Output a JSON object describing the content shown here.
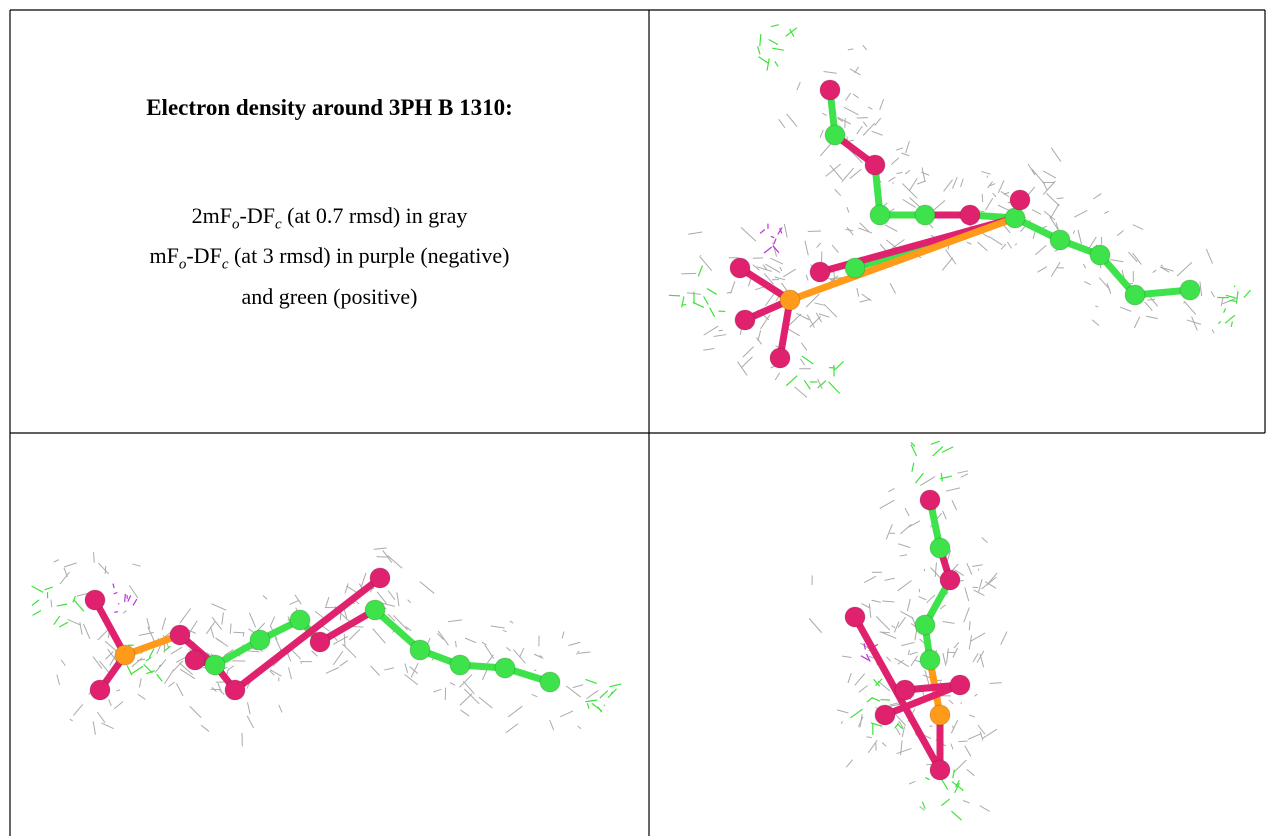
{
  "title": "Electron density around 3PH B 1310:",
  "legend": [
    {
      "parts": [
        "2mF",
        "o",
        "-DF",
        "c",
        " (at 0.7 rmsd) in gray"
      ]
    },
    {
      "parts": [
        "mF",
        "o",
        "-DF",
        "c",
        " (at 3 rmsd) in purple (negative)"
      ]
    },
    {
      "parts": [
        "and green (positive)"
      ]
    }
  ]
}
